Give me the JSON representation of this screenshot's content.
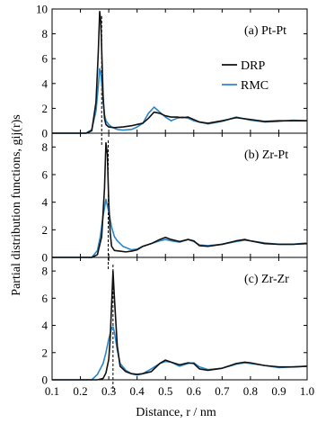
{
  "chart_data": {
    "type": "line",
    "xlabel": "Distance, r / nm",
    "ylabel": "Partial distribution functions, gij(r)s",
    "xlim": [
      0.1,
      1.0
    ],
    "xticks": [
      "0.1",
      "0.2",
      "0.3",
      "0.4",
      "0.5",
      "0.6",
      "0.7",
      "0.8",
      "0.9",
      "1.0"
    ],
    "grid": false,
    "legend": {
      "placement": "top-right",
      "entries": [
        "DRP",
        "RMC"
      ]
    },
    "colors": {
      "DRP": "#111111",
      "RMC": "#2b86c8"
    },
    "panels": [
      {
        "label": "(a) Pt-Pt",
        "ylim": [
          0,
          10
        ],
        "yticks": [
          "0",
          "2",
          "4",
          "6",
          "8",
          "10"
        ],
        "dashed_x": 0.275,
        "series": [
          {
            "name": "DRP",
            "x": [
              0.1,
              0.22,
              0.24,
              0.255,
              0.263,
              0.268,
              0.272,
              0.276,
              0.28,
              0.285,
              0.29,
              0.3,
              0.32,
              0.35,
              0.38,
              0.4,
              0.42,
              0.44,
              0.46,
              0.48,
              0.5,
              0.52,
              0.54,
              0.56,
              0.58,
              0.6,
              0.62,
              0.65,
              0.7,
              0.75,
              0.8,
              0.85,
              0.9,
              0.95,
              1.0
            ],
            "y": [
              0,
              0,
              0.2,
              2.5,
              6.5,
              9.8,
              9.0,
              6.0,
              3.0,
              1.2,
              0.7,
              0.5,
              0.45,
              0.5,
              0.6,
              0.7,
              0.8,
              1.2,
              1.7,
              1.6,
              1.4,
              1.3,
              1.3,
              1.25,
              1.3,
              1.1,
              0.9,
              0.8,
              1.0,
              1.25,
              1.1,
              0.95,
              1.0,
              1.0,
              1.0
            ]
          },
          {
            "name": "RMC",
            "x": [
              0.1,
              0.22,
              0.24,
              0.255,
              0.263,
              0.268,
              0.272,
              0.276,
              0.28,
              0.285,
              0.29,
              0.3,
              0.31,
              0.33,
              0.35,
              0.38,
              0.4,
              0.42,
              0.44,
              0.46,
              0.47,
              0.48,
              0.5,
              0.52,
              0.54,
              0.56,
              0.58,
              0.6,
              0.62,
              0.65,
              0.7,
              0.75,
              0.8,
              0.85,
              0.9,
              0.95,
              1.0
            ],
            "y": [
              0,
              0,
              0.3,
              1.8,
              3.8,
              5.2,
              4.8,
              3.8,
              2.6,
              1.5,
              1.0,
              0.7,
              0.5,
              0.3,
              0.25,
              0.3,
              0.5,
              0.8,
              1.6,
              2.1,
              1.9,
              1.7,
              1.3,
              1.0,
              1.2,
              1.3,
              1.2,
              1.0,
              0.9,
              0.75,
              0.95,
              1.3,
              1.05,
              0.9,
              0.95,
              1.05,
              1.0
            ]
          }
        ]
      },
      {
        "label": "(b) Zr-Pt",
        "ylim": [
          0,
          9
        ],
        "yticks": [
          "0",
          "2",
          "4",
          "6",
          "8"
        ],
        "dashed_x": 0.298,
        "series": [
          {
            "name": "DRP",
            "x": [
              0.1,
              0.24,
              0.26,
              0.275,
              0.285,
              0.29,
              0.295,
              0.3,
              0.305,
              0.31,
              0.32,
              0.34,
              0.36,
              0.38,
              0.4,
              0.42,
              0.45,
              0.48,
              0.5,
              0.52,
              0.55,
              0.58,
              0.6,
              0.62,
              0.65,
              0.7,
              0.75,
              0.78,
              0.8,
              0.85,
              0.9,
              0.95,
              1.0
            ],
            "y": [
              0,
              0,
              0.2,
              1.5,
              5.0,
              8.3,
              7.5,
              4.0,
              1.8,
              0.8,
              0.5,
              0.45,
              0.4,
              0.45,
              0.55,
              0.8,
              1.0,
              1.3,
              1.45,
              1.3,
              1.15,
              1.3,
              1.2,
              0.85,
              0.8,
              0.95,
              1.2,
              1.3,
              1.2,
              1.0,
              0.95,
              0.95,
              1.0
            ]
          },
          {
            "name": "RMC",
            "x": [
              0.1,
              0.24,
              0.26,
              0.27,
              0.28,
              0.29,
              0.3,
              0.31,
              0.32,
              0.33,
              0.35,
              0.38,
              0.4,
              0.42,
              0.45,
              0.48,
              0.5,
              0.52,
              0.55,
              0.58,
              0.6,
              0.62,
              0.65,
              0.7,
              0.75,
              0.78,
              0.8,
              0.85,
              0.9,
              0.95,
              1.0
            ],
            "y": [
              0,
              0,
              0.5,
              1.5,
              3.0,
              4.2,
              3.3,
              2.2,
              1.5,
              1.2,
              0.8,
              0.55,
              0.6,
              0.8,
              1.0,
              1.2,
              1.3,
              1.2,
              1.1,
              1.3,
              1.15,
              0.9,
              0.85,
              0.95,
              1.15,
              1.25,
              1.2,
              1.05,
              0.95,
              0.95,
              1.05
            ]
          }
        ]
      },
      {
        "label": "(c) Zr-Zr",
        "ylim": [
          0,
          9
        ],
        "yticks": [
          "0",
          "2",
          "4",
          "6",
          "8"
        ],
        "dashed_x": 0.315,
        "series": [
          {
            "name": "DRP",
            "x": [
              0.1,
              0.26,
              0.28,
              0.29,
              0.3,
              0.305,
              0.31,
              0.315,
              0.32,
              0.33,
              0.34,
              0.36,
              0.38,
              0.4,
              0.42,
              0.45,
              0.48,
              0.5,
              0.52,
              0.55,
              0.58,
              0.6,
              0.62,
              0.65,
              0.7,
              0.75,
              0.78,
              0.8,
              0.85,
              0.9,
              0.95,
              1.0
            ],
            "y": [
              0,
              0,
              0.1,
              0.5,
              1.5,
              3.0,
              5.5,
              8.0,
              6.0,
              2.5,
              1.0,
              0.6,
              0.45,
              0.4,
              0.45,
              0.6,
              1.2,
              1.45,
              1.3,
              1.1,
              1.25,
              1.2,
              0.8,
              0.7,
              0.85,
              1.2,
              1.3,
              1.25,
              1.05,
              0.95,
              0.95,
              1.0
            ]
          },
          {
            "name": "RMC",
            "x": [
              0.1,
              0.24,
              0.26,
              0.28,
              0.29,
              0.3,
              0.31,
              0.315,
              0.32,
              0.33,
              0.34,
              0.36,
              0.38,
              0.4,
              0.42,
              0.45,
              0.48,
              0.5,
              0.52,
              0.55,
              0.58,
              0.6,
              0.62,
              0.65,
              0.7,
              0.75,
              0.78,
              0.8,
              0.85,
              0.9,
              0.95,
              1.0
            ],
            "y": [
              0,
              0,
              0.4,
              1.2,
              2.0,
              3.0,
              3.8,
              3.9,
              3.5,
              2.2,
              1.2,
              0.7,
              0.45,
              0.35,
              0.45,
              0.8,
              1.2,
              1.35,
              1.3,
              1.0,
              1.2,
              1.25,
              0.95,
              0.75,
              0.85,
              1.15,
              1.25,
              1.2,
              1.05,
              0.9,
              0.95,
              1.0
            ]
          }
        ]
      }
    ]
  }
}
